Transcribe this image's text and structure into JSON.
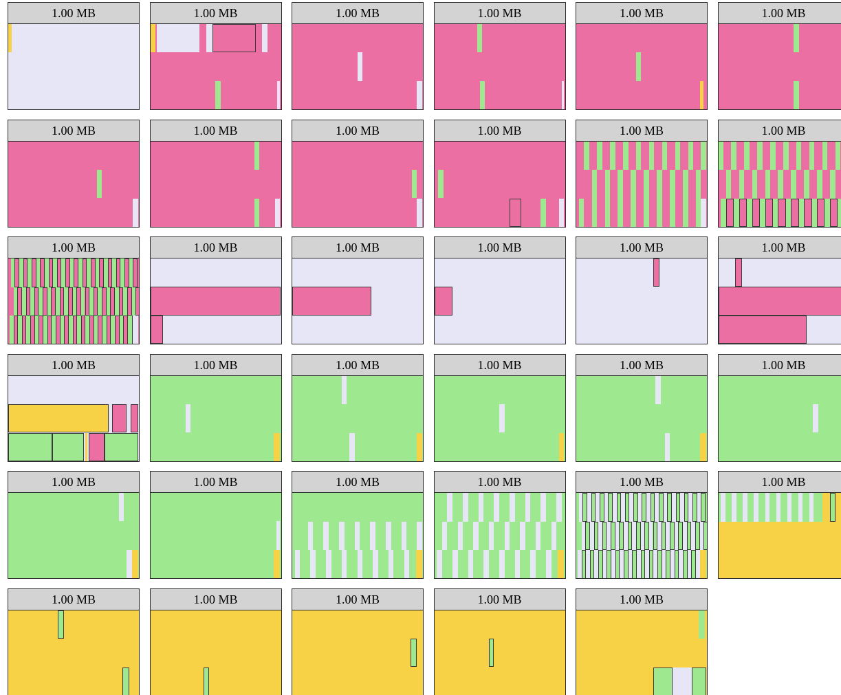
{
  "colors": {
    "free": "#e6e6f6",
    "pink": "#ec6fa4",
    "green": "#9ee88f",
    "yellow": "#f8d246",
    "header": "#d3d3d3",
    "border": "#2a2a2a"
  },
  "tiles": [
    {
      "label": "1.00 MB",
      "bg": "free",
      "blocks": [
        [
          "yellow",
          0,
          0,
          0.025,
          0.333
        ]
      ]
    },
    {
      "label": "1.00 MB",
      "bg": "pink",
      "blocks": [
        [
          "yellow",
          0,
          0,
          0.04,
          0.333
        ],
        [
          "free",
          0.05,
          0,
          0.33,
          0.333
        ],
        [
          "free",
          0.43,
          0,
          0.05,
          0.333
        ],
        [
          "pink",
          0.48,
          0,
          0.33,
          0.333,
          1
        ],
        [
          "free",
          0.86,
          0,
          0.04,
          0.333
        ],
        [
          "green",
          0.5,
          0.667,
          0.04,
          0.333
        ],
        [
          "free",
          0.975,
          0.667,
          0.025,
          0.333
        ]
      ]
    },
    {
      "label": "1.00 MB",
      "bg": "pink",
      "blocks": [
        [
          "free",
          0.5,
          0.333,
          0.04,
          0.333
        ],
        [
          "free",
          0.96,
          0.667,
          0.04,
          0.333
        ]
      ]
    },
    {
      "label": "1.00 MB",
      "bg": "pink",
      "blocks": [
        [
          "green",
          0.33,
          0,
          0.04,
          0.333
        ],
        [
          "green",
          0.35,
          0.667,
          0.04,
          0.333
        ],
        [
          "free",
          0.98,
          0.667,
          0.02,
          0.333
        ]
      ]
    },
    {
      "label": "1.00 MB",
      "bg": "pink",
      "blocks": [
        [
          "green",
          0.46,
          0.333,
          0.04,
          0.333
        ],
        [
          "yellow",
          0.95,
          0.667,
          0.03,
          0.333
        ]
      ]
    },
    {
      "label": "1.00 MB",
      "bg": "pink",
      "blocks": [
        [
          "green",
          0.58,
          0,
          0.04,
          0.333
        ],
        [
          "green",
          0.58,
          0.667,
          0.04,
          0.333
        ]
      ]
    },
    {
      "label": "1.00 MB",
      "bg": "pink",
      "blocks": [
        [
          "green",
          0.68,
          0.333,
          0.04,
          0.333
        ],
        [
          "free",
          0.96,
          0.667,
          0.04,
          0.333
        ]
      ]
    },
    {
      "label": "1.00 MB",
      "bg": "pink",
      "blocks": [
        [
          "green",
          0.8,
          0,
          0.04,
          0.333
        ],
        [
          "green",
          0.8,
          0.667,
          0.04,
          0.333
        ],
        [
          "free",
          0.96,
          0.667,
          0.04,
          0.333
        ]
      ]
    },
    {
      "label": "1.00 MB",
      "bg": "pink",
      "blocks": [
        [
          "green",
          0.92,
          0.333,
          0.04,
          0.333
        ],
        [
          "free",
          0.96,
          0.667,
          0.04,
          0.333
        ]
      ]
    },
    {
      "label": "1.00 MB",
      "bg": "pink",
      "blocks": [
        [
          "green",
          0.03,
          0.333,
          0.04,
          0.333
        ],
        [
          "pink",
          0.58,
          0.667,
          0.09,
          0.333,
          1
        ],
        [
          "green",
          0.82,
          0.667,
          0.04,
          0.333
        ],
        [
          "free",
          0.96,
          0.667,
          0.04,
          0.333
        ]
      ]
    },
    {
      "label": "1.00 MB",
      "bg": "pink",
      "pattern": {
        "kind": "stripes",
        "rows": 3,
        "period": 0.1,
        "width": 0.04,
        "colors": [
          "green"
        ],
        "offsets": [
          0.06,
          0.12,
          0.02
        ],
        "endFree": true
      }
    },
    {
      "label": "1.00 MB",
      "bg": "pink",
      "pattern": {
        "kind": "stripes",
        "rows": 3,
        "period": 0.1,
        "width": 0.04,
        "colors": [
          "green"
        ],
        "offsets": [
          0.0,
          0.06,
          0.02
        ],
        "outlineRow": 2
      }
    },
    {
      "label": "1.00 MB",
      "bg": "pink",
      "pattern": {
        "kind": "stripes",
        "rows": 3,
        "period": 0.065,
        "width": 0.03,
        "colors": [
          "green"
        ],
        "offsets": [
          0.02,
          0.04,
          0.01
        ],
        "outlineAll": true,
        "endFree": true
      }
    },
    {
      "label": "1.00 MB",
      "bg": "free",
      "blocks": [
        [
          "pink",
          0,
          0.333,
          1,
          0.333,
          1
        ],
        [
          "pink",
          0,
          0.667,
          0.1,
          0.333,
          1
        ]
      ]
    },
    {
      "label": "1.00 MB",
      "bg": "free",
      "blocks": [
        [
          "pink",
          0,
          0.333,
          0.61,
          0.333,
          1
        ]
      ]
    },
    {
      "label": "1.00 MB",
      "bg": "free",
      "blocks": [
        [
          "pink",
          0,
          0.333,
          0.14,
          0.333,
          1
        ]
      ]
    },
    {
      "label": "1.00 MB",
      "bg": "free",
      "blocks": [
        [
          "pink",
          0.59,
          0,
          0.05,
          0.333,
          1
        ]
      ]
    },
    {
      "label": "1.00 MB",
      "bg": "free",
      "blocks": [
        [
          "pink",
          0.13,
          0,
          0.05,
          0.333,
          1
        ],
        [
          "pink",
          0,
          0.333,
          1,
          0.333,
          1
        ],
        [
          "pink",
          0,
          0.667,
          0.68,
          0.333,
          1
        ]
      ]
    },
    {
      "label": "1.00 MB",
      "bg": "free",
      "blocks": [
        [
          "yellow",
          0,
          0.333,
          0.77,
          0.333,
          1
        ],
        [
          "pink",
          0.8,
          0.333,
          0.11,
          0.333,
          1
        ],
        [
          "pink",
          0.94,
          0.333,
          0.06,
          0.333,
          1
        ],
        [
          "green",
          0,
          0.667,
          0.34,
          0.333,
          1
        ],
        [
          "green",
          0.34,
          0.667,
          0.24,
          0.333,
          1
        ],
        [
          "yellow",
          0.59,
          0.667,
          0.02,
          0.333
        ],
        [
          "pink",
          0.62,
          0.667,
          0.12,
          0.333,
          1
        ],
        [
          "green",
          0.74,
          0.667,
          0.26,
          0.333,
          1
        ]
      ]
    },
    {
      "label": "1.00 MB",
      "bg": "green",
      "blocks": [
        [
          "free",
          0.27,
          0.333,
          0.04,
          0.333
        ],
        [
          "yellow",
          0.95,
          0.667,
          0.05,
          0.333
        ]
      ]
    },
    {
      "label": "1.00 MB",
      "bg": "green",
      "blocks": [
        [
          "free",
          0.38,
          0,
          0.04,
          0.333
        ],
        [
          "free",
          0.44,
          0.667,
          0.04,
          0.333
        ],
        [
          "yellow",
          0.96,
          0.667,
          0.04,
          0.333
        ]
      ]
    },
    {
      "label": "1.00 MB",
      "bg": "green",
      "blocks": [
        [
          "free",
          0.5,
          0.333,
          0.04,
          0.333
        ],
        [
          "yellow",
          0.96,
          0.667,
          0.04,
          0.333
        ]
      ]
    },
    {
      "label": "1.00 MB",
      "bg": "green",
      "blocks": [
        [
          "free",
          0.61,
          0,
          0.04,
          0.333
        ],
        [
          "free",
          0.68,
          0.667,
          0.04,
          0.333
        ],
        [
          "yellow",
          0.95,
          0.667,
          0.05,
          0.333
        ]
      ]
    },
    {
      "label": "1.00 MB",
      "bg": "green",
      "blocks": [
        [
          "free",
          0.73,
          0.333,
          0.04,
          0.333
        ]
      ]
    },
    {
      "label": "1.00 MB",
      "bg": "green",
      "blocks": [
        [
          "free",
          0.85,
          0,
          0.04,
          0.333
        ],
        [
          "free",
          0.91,
          0.667,
          0.04,
          0.333
        ],
        [
          "yellow",
          0.95,
          0.667,
          0.05,
          0.333
        ]
      ]
    },
    {
      "label": "1.00 MB",
      "bg": "green",
      "blocks": [
        [
          "free",
          0.97,
          0.333,
          0.03,
          0.333
        ],
        [
          "yellow",
          0.95,
          0.667,
          0.05,
          0.333
        ]
      ]
    },
    {
      "label": "1.00 MB",
      "bg": "green",
      "pattern": {
        "kind": "stripes",
        "rows": 3,
        "period": 0.12,
        "width": 0.04,
        "colors": [
          "free"
        ],
        "offsets": [
          0.6,
          0.12,
          0.02
        ],
        "startRow0": 0.6,
        "endYellow": true
      }
    },
    {
      "label": "1.00 MB",
      "bg": "green",
      "pattern": {
        "kind": "stripes",
        "rows": 3,
        "period": 0.12,
        "width": 0.04,
        "colors": [
          "free"
        ],
        "offsets": [
          0.1,
          0.06,
          0.02
        ],
        "endYellow": true
      }
    },
    {
      "label": "1.00 MB",
      "bg": "green",
      "pattern": {
        "kind": "stripes",
        "rows": 3,
        "period": 0.065,
        "width": 0.03,
        "colors": [
          "free"
        ],
        "offsets": [
          0.02,
          0.04,
          0.01
        ],
        "outlineAll": true,
        "endYellow": true
      }
    },
    {
      "label": "1.00 MB",
      "bg": "yellow",
      "pattern": {
        "kind": "stripes",
        "rows": 1,
        "period": 0.085,
        "width": 0.035,
        "colors": [
          "free"
        ],
        "offsets": [
          0.02
        ],
        "topRowGreen": true,
        "topRowStop": 0.8
      }
    },
    {
      "label": "1.00 MB",
      "bg": "yellow",
      "blocks": [
        [
          "green",
          0.38,
          0,
          0.05,
          0.333,
          1
        ],
        [
          "green",
          0.88,
          0.667,
          0.05,
          0.333,
          1
        ]
      ]
    },
    {
      "label": "1.00 MB",
      "bg": "yellow",
      "blocks": [
        [
          "green",
          0.41,
          0.667,
          0.04,
          0.333,
          1
        ]
      ]
    },
    {
      "label": "1.00 MB",
      "bg": "yellow",
      "blocks": [
        [
          "green",
          0.91,
          0.333,
          0.05,
          0.333,
          1
        ]
      ]
    },
    {
      "label": "1.00 MB",
      "bg": "yellow",
      "blocks": [
        [
          "green",
          0.42,
          0.333,
          0.04,
          0.333,
          1
        ]
      ]
    },
    {
      "label": "1.00 MB",
      "bg": "yellow",
      "blocks": [
        [
          "green",
          0.94,
          0,
          0.05,
          0.333
        ],
        [
          "green",
          0.59,
          0.667,
          0.15,
          0.333,
          1
        ],
        [
          "free",
          0.74,
          0.667,
          0.15,
          0.333
        ],
        [
          "green",
          0.89,
          0.667,
          0.11,
          0.333,
          1
        ]
      ]
    }
  ]
}
